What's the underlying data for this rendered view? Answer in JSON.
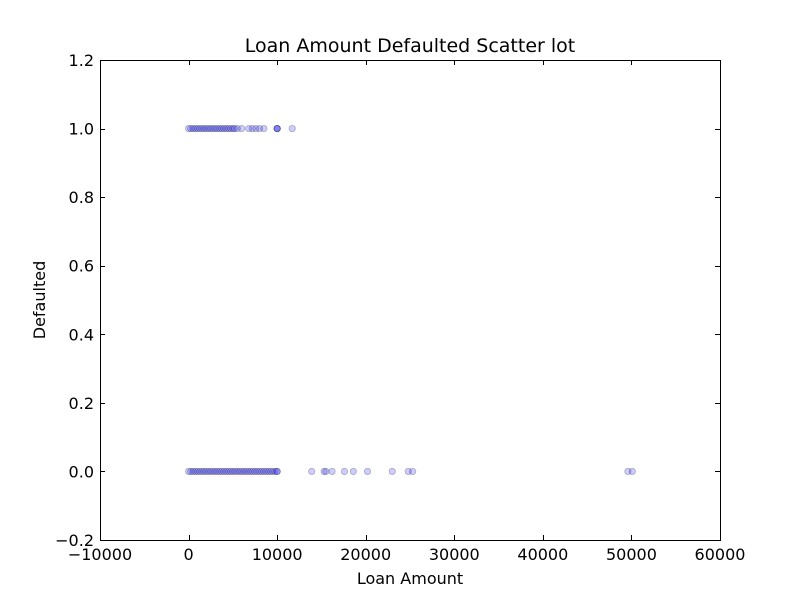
{
  "chart_data": {
    "type": "scatter",
    "title": "Loan Amount Defaulted Scatter lot",
    "xlabel": "Loan Amount",
    "ylabel": "Defaulted",
    "xlim": [
      -10000,
      60000
    ],
    "ylim": [
      -0.2,
      1.2
    ],
    "x_ticks": [
      -10000,
      0,
      10000,
      20000,
      30000,
      40000,
      50000,
      60000
    ],
    "y_ticks": [
      -0.2,
      0.0,
      0.2,
      0.4,
      0.6,
      0.8,
      1.0,
      1.2
    ],
    "x_tick_labels": [
      "−10000",
      "0",
      "10000",
      "20000",
      "30000",
      "40000",
      "50000",
      "60000"
    ],
    "y_tick_labels": [
      "−0.2",
      "0.0",
      "0.2",
      "0.4",
      "0.6",
      "0.8",
      "1.0",
      "1.2"
    ],
    "grid": false,
    "legend": null,
    "series": [
      {
        "color": "#0000ff",
        "alpha": 0.2,
        "points": [
          {
            "x": 0,
            "y": 1
          },
          {
            "x": 250,
            "y": 1
          },
          {
            "x": 500,
            "y": 1
          },
          {
            "x": 750,
            "y": 1
          },
          {
            "x": 1000,
            "y": 1
          },
          {
            "x": 1250,
            "y": 1
          },
          {
            "x": 1500,
            "y": 1
          },
          {
            "x": 1750,
            "y": 1
          },
          {
            "x": 2000,
            "y": 1
          },
          {
            "x": 2250,
            "y": 1
          },
          {
            "x": 2500,
            "y": 1
          },
          {
            "x": 2750,
            "y": 1
          },
          {
            "x": 3000,
            "y": 1
          },
          {
            "x": 3250,
            "y": 1
          },
          {
            "x": 3500,
            "y": 1
          },
          {
            "x": 3750,
            "y": 1
          },
          {
            "x": 4000,
            "y": 1
          },
          {
            "x": 4250,
            "y": 1
          },
          {
            "x": 4500,
            "y": 1
          },
          {
            "x": 4750,
            "y": 1
          },
          {
            "x": 5000,
            "y": 1
          },
          {
            "x": 5200,
            "y": 1
          },
          {
            "x": 5500,
            "y": 1
          },
          {
            "x": 6000,
            "y": 1
          },
          {
            "x": 6800,
            "y": 1
          },
          {
            "x": 7200,
            "y": 1
          },
          {
            "x": 7600,
            "y": 1
          },
          {
            "x": 8000,
            "y": 1
          },
          {
            "x": 8500,
            "y": 1
          },
          {
            "x": 10000,
            "y": 1
          },
          {
            "x": 10000,
            "y": 1
          },
          {
            "x": 10000,
            "y": 1
          },
          {
            "x": 11700,
            "y": 1
          },
          {
            "x": 0,
            "y": 0
          },
          {
            "x": 250,
            "y": 0
          },
          {
            "x": 500,
            "y": 0
          },
          {
            "x": 750,
            "y": 0
          },
          {
            "x": 1000,
            "y": 0
          },
          {
            "x": 1250,
            "y": 0
          },
          {
            "x": 1500,
            "y": 0
          },
          {
            "x": 1750,
            "y": 0
          },
          {
            "x": 2000,
            "y": 0
          },
          {
            "x": 2250,
            "y": 0
          },
          {
            "x": 2500,
            "y": 0
          },
          {
            "x": 2750,
            "y": 0
          },
          {
            "x": 3000,
            "y": 0
          },
          {
            "x": 3250,
            "y": 0
          },
          {
            "x": 3500,
            "y": 0
          },
          {
            "x": 3750,
            "y": 0
          },
          {
            "x": 4000,
            "y": 0
          },
          {
            "x": 4250,
            "y": 0
          },
          {
            "x": 4500,
            "y": 0
          },
          {
            "x": 4750,
            "y": 0
          },
          {
            "x": 5000,
            "y": 0
          },
          {
            "x": 5250,
            "y": 0
          },
          {
            "x": 5500,
            "y": 0
          },
          {
            "x": 5750,
            "y": 0
          },
          {
            "x": 6000,
            "y": 0
          },
          {
            "x": 6250,
            "y": 0
          },
          {
            "x": 6500,
            "y": 0
          },
          {
            "x": 6750,
            "y": 0
          },
          {
            "x": 7000,
            "y": 0
          },
          {
            "x": 7250,
            "y": 0
          },
          {
            "x": 7500,
            "y": 0
          },
          {
            "x": 7750,
            "y": 0
          },
          {
            "x": 8000,
            "y": 0
          },
          {
            "x": 8250,
            "y": 0
          },
          {
            "x": 8500,
            "y": 0
          },
          {
            "x": 8750,
            "y": 0
          },
          {
            "x": 9000,
            "y": 0
          },
          {
            "x": 9250,
            "y": 0
          },
          {
            "x": 9500,
            "y": 0
          },
          {
            "x": 9750,
            "y": 0
          },
          {
            "x": 10000,
            "y": 0
          },
          {
            "x": 10000,
            "y": 0
          },
          {
            "x": 13900,
            "y": 0
          },
          {
            "x": 15300,
            "y": 0
          },
          {
            "x": 15500,
            "y": 0
          },
          {
            "x": 16200,
            "y": 0
          },
          {
            "x": 17600,
            "y": 0
          },
          {
            "x": 18600,
            "y": 0
          },
          {
            "x": 20200,
            "y": 0
          },
          {
            "x": 23000,
            "y": 0
          },
          {
            "x": 24800,
            "y": 0
          },
          {
            "x": 25300,
            "y": 0
          },
          {
            "x": 49600,
            "y": 0
          },
          {
            "x": 50100,
            "y": 0
          }
        ]
      }
    ]
  }
}
